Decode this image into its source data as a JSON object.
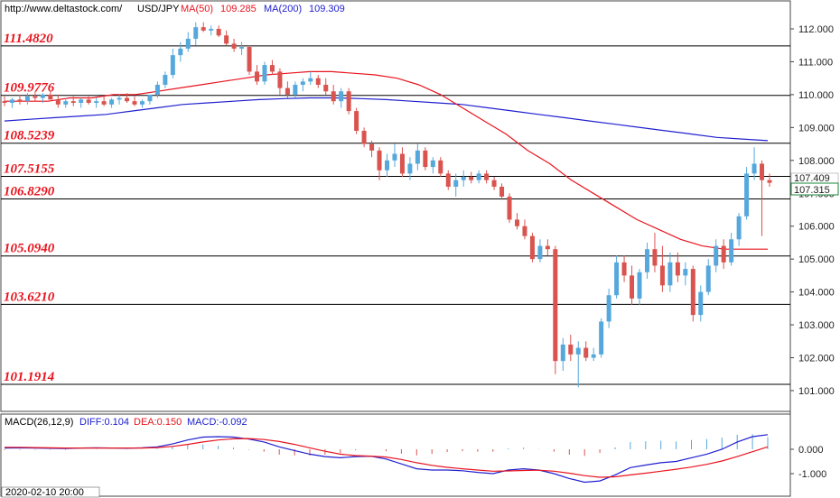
{
  "header": {
    "url": "http://www.deltastock.com/",
    "symbol": "USD/JPY",
    "ma50_label": "MA(50)",
    "ma50_value": "109.285",
    "ma200_label": "MA(200)",
    "ma200_value": "109.309"
  },
  "macd_header": {
    "label": "MACD(26,12,9)",
    "diff": "DIFF:0.104",
    "dea": "DEA:0.150",
    "macd": "MACD:-0.092"
  },
  "date_readout": "2020-02-10 20:00",
  "current_price": {
    "upper": "107.409",
    "lower": "107.315"
  },
  "colors": {
    "bull": "#56a8dc",
    "bear": "#d9534f",
    "ma50": "#e8141e",
    "ma200": "#2020d0",
    "level_text": "#e8141e"
  },
  "chart_data": [
    {
      "type": "candlestick",
      "symbol": "USD/JPY",
      "ylim": [
        100.7,
        112.45
      ],
      "y_ticks": [
        "112.000",
        "111.000",
        "110.000",
        "109.000",
        "108.000",
        "107.000",
        "106.000",
        "105.000",
        "104.000",
        "103.000",
        "102.000",
        "101.000"
      ],
      "levels": [
        "111.4820",
        "109.9776",
        "108.5239",
        "107.5155",
        "106.8290",
        "105.0940",
        "103.6210",
        "101.1914"
      ],
      "series": [
        {
          "name": "MA(50)",
          "values": [
            109.8,
            109.8,
            109.8,
            109.9,
            109.9,
            110.0,
            110.0,
            110.1,
            110.2,
            110.3,
            110.4,
            110.5,
            110.6,
            110.65,
            110.7,
            110.7,
            110.65,
            110.6,
            110.5,
            110.3,
            110.0,
            109.6,
            109.2,
            108.8,
            108.3,
            107.9,
            107.4,
            107.0,
            106.6,
            106.2,
            105.9,
            105.6,
            105.4,
            105.3,
            105.3,
            105.3
          ]
        },
        {
          "name": "MA(200)",
          "values": [
            109.2,
            109.25,
            109.3,
            109.35,
            109.4,
            109.5,
            109.6,
            109.7,
            109.75,
            109.8,
            109.85,
            109.88,
            109.9,
            109.9,
            109.88,
            109.85,
            109.8,
            109.75,
            109.7,
            109.6,
            109.5,
            109.4,
            109.3,
            109.2,
            109.1,
            109.0,
            108.9,
            108.8,
            108.7,
            108.65,
            108.6
          ]
        }
      ],
      "candles": [
        {
          "o": 109.8,
          "h": 109.95,
          "l": 109.65,
          "c": 109.75
        },
        {
          "o": 109.75,
          "h": 109.9,
          "l": 109.6,
          "c": 109.85
        },
        {
          "o": 109.85,
          "h": 110.0,
          "l": 109.7,
          "c": 109.8
        },
        {
          "o": 109.8,
          "h": 110.05,
          "l": 109.7,
          "c": 109.95
        },
        {
          "o": 109.95,
          "h": 110.1,
          "l": 109.8,
          "c": 109.9
        },
        {
          "o": 109.9,
          "h": 110.05,
          "l": 109.75,
          "c": 110.0
        },
        {
          "o": 110.0,
          "h": 110.1,
          "l": 109.85,
          "c": 109.85
        },
        {
          "o": 109.85,
          "h": 110.0,
          "l": 109.6,
          "c": 109.7
        },
        {
          "o": 109.7,
          "h": 109.9,
          "l": 109.6,
          "c": 109.8
        },
        {
          "o": 109.8,
          "h": 109.95,
          "l": 109.65,
          "c": 109.75
        },
        {
          "o": 109.75,
          "h": 109.9,
          "l": 109.6,
          "c": 109.85
        },
        {
          "o": 109.85,
          "h": 109.95,
          "l": 109.7,
          "c": 109.75
        },
        {
          "o": 109.75,
          "h": 109.9,
          "l": 109.6,
          "c": 109.8
        },
        {
          "o": 109.8,
          "h": 109.95,
          "l": 109.65,
          "c": 109.7
        },
        {
          "o": 109.7,
          "h": 109.9,
          "l": 109.6,
          "c": 109.85
        },
        {
          "o": 109.85,
          "h": 110.0,
          "l": 109.7,
          "c": 109.9
        },
        {
          "o": 109.9,
          "h": 110.05,
          "l": 109.75,
          "c": 109.8
        },
        {
          "o": 109.8,
          "h": 109.95,
          "l": 109.65,
          "c": 109.7
        },
        {
          "o": 109.7,
          "h": 109.85,
          "l": 109.6,
          "c": 109.8
        },
        {
          "o": 109.8,
          "h": 110.0,
          "l": 109.7,
          "c": 110.0
        },
        {
          "o": 110.0,
          "h": 110.4,
          "l": 109.9,
          "c": 110.3
        },
        {
          "o": 110.3,
          "h": 110.7,
          "l": 110.2,
          "c": 110.6
        },
        {
          "o": 110.6,
          "h": 111.4,
          "l": 110.5,
          "c": 111.2
        },
        {
          "o": 111.2,
          "h": 111.6,
          "l": 111.0,
          "c": 111.4
        },
        {
          "o": 111.4,
          "h": 111.9,
          "l": 111.3,
          "c": 111.7
        },
        {
          "o": 111.7,
          "h": 112.2,
          "l": 111.5,
          "c": 112.05
        },
        {
          "o": 112.05,
          "h": 112.2,
          "l": 111.9,
          "c": 111.95
        },
        {
          "o": 111.95,
          "h": 112.1,
          "l": 111.8,
          "c": 112.0
        },
        {
          "o": 112.0,
          "h": 112.1,
          "l": 111.75,
          "c": 111.8
        },
        {
          "o": 111.8,
          "h": 111.95,
          "l": 111.5,
          "c": 111.55
        },
        {
          "o": 111.55,
          "h": 111.7,
          "l": 111.3,
          "c": 111.4
        },
        {
          "o": 111.4,
          "h": 111.6,
          "l": 111.2,
          "c": 111.45
        },
        {
          "o": 111.45,
          "h": 111.5,
          "l": 110.6,
          "c": 110.7
        },
        {
          "o": 110.7,
          "h": 110.9,
          "l": 110.3,
          "c": 110.4
        },
        {
          "o": 110.4,
          "h": 111.0,
          "l": 110.3,
          "c": 110.9
        },
        {
          "o": 110.9,
          "h": 111.05,
          "l": 110.6,
          "c": 110.7
        },
        {
          "o": 110.7,
          "h": 110.8,
          "l": 110.0,
          "c": 110.2
        },
        {
          "o": 110.2,
          "h": 110.4,
          "l": 109.9,
          "c": 110.0
        },
        {
          "o": 110.0,
          "h": 110.4,
          "l": 109.9,
          "c": 110.3
        },
        {
          "o": 110.3,
          "h": 110.5,
          "l": 110.1,
          "c": 110.4
        },
        {
          "o": 110.4,
          "h": 110.7,
          "l": 110.3,
          "c": 110.5
        },
        {
          "o": 110.5,
          "h": 110.6,
          "l": 110.2,
          "c": 110.3
        },
        {
          "o": 110.3,
          "h": 110.5,
          "l": 110.0,
          "c": 110.1
        },
        {
          "o": 110.1,
          "h": 110.3,
          "l": 109.7,
          "c": 109.8
        },
        {
          "o": 109.8,
          "h": 110.2,
          "l": 109.6,
          "c": 110.1
        },
        {
          "o": 110.1,
          "h": 110.2,
          "l": 109.4,
          "c": 109.5
        },
        {
          "o": 109.5,
          "h": 109.6,
          "l": 108.8,
          "c": 108.9
        },
        {
          "o": 108.9,
          "h": 109.0,
          "l": 108.4,
          "c": 108.5
        },
        {
          "o": 108.5,
          "h": 108.6,
          "l": 108.1,
          "c": 108.3
        },
        {
          "o": 108.3,
          "h": 108.4,
          "l": 107.4,
          "c": 107.7
        },
        {
          "o": 107.7,
          "h": 108.2,
          "l": 107.5,
          "c": 108.0
        },
        {
          "o": 108.0,
          "h": 108.5,
          "l": 107.8,
          "c": 108.2
        },
        {
          "o": 108.2,
          "h": 108.4,
          "l": 107.5,
          "c": 107.6
        },
        {
          "o": 107.6,
          "h": 108.1,
          "l": 107.4,
          "c": 107.9
        },
        {
          "o": 107.9,
          "h": 108.5,
          "l": 107.7,
          "c": 108.3
        },
        {
          "o": 108.3,
          "h": 108.4,
          "l": 107.7,
          "c": 107.8
        },
        {
          "o": 107.8,
          "h": 108.1,
          "l": 107.6,
          "c": 108.0
        },
        {
          "o": 108.0,
          "h": 108.1,
          "l": 107.5,
          "c": 107.6
        },
        {
          "o": 107.6,
          "h": 107.7,
          "l": 107.1,
          "c": 107.2
        },
        {
          "o": 107.2,
          "h": 107.6,
          "l": 106.9,
          "c": 107.4
        },
        {
          "o": 107.4,
          "h": 107.7,
          "l": 107.2,
          "c": 107.5
        },
        {
          "o": 107.5,
          "h": 107.65,
          "l": 107.3,
          "c": 107.4
        },
        {
          "o": 107.4,
          "h": 107.7,
          "l": 107.3,
          "c": 107.6
        },
        {
          "o": 107.6,
          "h": 107.7,
          "l": 107.3,
          "c": 107.4
        },
        {
          "o": 107.4,
          "h": 107.5,
          "l": 107.1,
          "c": 107.2
        },
        {
          "o": 107.2,
          "h": 107.3,
          "l": 106.8,
          "c": 106.9
        },
        {
          "o": 106.9,
          "h": 107.0,
          "l": 106.1,
          "c": 106.2
        },
        {
          "o": 106.2,
          "h": 106.4,
          "l": 105.9,
          "c": 106.0
        },
        {
          "o": 106.0,
          "h": 106.2,
          "l": 105.6,
          "c": 105.7
        },
        {
          "o": 105.7,
          "h": 105.8,
          "l": 104.9,
          "c": 105.0
        },
        {
          "o": 105.0,
          "h": 105.6,
          "l": 104.9,
          "c": 105.4
        },
        {
          "o": 105.4,
          "h": 105.6,
          "l": 105.1,
          "c": 105.3
        },
        {
          "o": 105.3,
          "h": 105.4,
          "l": 101.5,
          "c": 101.9
        },
        {
          "o": 101.9,
          "h": 102.6,
          "l": 101.6,
          "c": 102.4
        },
        {
          "o": 102.4,
          "h": 102.7,
          "l": 101.9,
          "c": 102.1
        },
        {
          "o": 102.1,
          "h": 102.5,
          "l": 101.1,
          "c": 102.3
        },
        {
          "o": 102.3,
          "h": 102.5,
          "l": 101.9,
          "c": 102.0
        },
        {
          "o": 102.0,
          "h": 102.3,
          "l": 101.9,
          "c": 102.1
        },
        {
          "o": 102.1,
          "h": 103.2,
          "l": 102.0,
          "c": 103.1
        },
        {
          "o": 103.1,
          "h": 104.1,
          "l": 102.9,
          "c": 103.9
        },
        {
          "o": 103.9,
          "h": 105.1,
          "l": 103.8,
          "c": 104.9
        },
        {
          "o": 104.9,
          "h": 105.1,
          "l": 104.3,
          "c": 104.5
        },
        {
          "o": 104.5,
          "h": 104.8,
          "l": 103.6,
          "c": 103.8
        },
        {
          "o": 103.8,
          "h": 104.7,
          "l": 103.6,
          "c": 104.6
        },
        {
          "o": 104.6,
          "h": 105.5,
          "l": 104.4,
          "c": 105.3
        },
        {
          "o": 105.3,
          "h": 105.8,
          "l": 104.6,
          "c": 104.8
        },
        {
          "o": 104.8,
          "h": 105.4,
          "l": 104.0,
          "c": 104.2
        },
        {
          "o": 104.2,
          "h": 105.2,
          "l": 104.0,
          "c": 104.9
        },
        {
          "o": 104.9,
          "h": 105.2,
          "l": 104.3,
          "c": 104.5
        },
        {
          "o": 104.5,
          "h": 104.9,
          "l": 104.2,
          "c": 104.7
        },
        {
          "o": 104.7,
          "h": 104.8,
          "l": 103.1,
          "c": 103.3
        },
        {
          "o": 103.3,
          "h": 104.2,
          "l": 103.1,
          "c": 104.0
        },
        {
          "o": 104.0,
          "h": 105.0,
          "l": 103.9,
          "c": 104.8
        },
        {
          "o": 104.8,
          "h": 105.6,
          "l": 104.6,
          "c": 105.4
        },
        {
          "o": 105.4,
          "h": 105.6,
          "l": 104.7,
          "c": 104.9
        },
        {
          "o": 104.9,
          "h": 105.8,
          "l": 104.8,
          "c": 105.6
        },
        {
          "o": 105.6,
          "h": 106.4,
          "l": 105.4,
          "c": 106.3
        },
        {
          "o": 106.3,
          "h": 107.8,
          "l": 106.2,
          "c": 107.6
        },
        {
          "o": 107.6,
          "h": 108.4,
          "l": 107.4,
          "c": 107.9
        },
        {
          "o": 107.9,
          "h": 108.0,
          "l": 105.7,
          "c": 107.4
        },
        {
          "o": 107.4,
          "h": 107.6,
          "l": 107.2,
          "c": 107.32
        }
      ]
    },
    {
      "type": "macd",
      "title": "MACD(26,12,9)",
      "y_ticks": [
        "0.000",
        "-1.000"
      ],
      "ylim": [
        -1.5,
        1.2
      ],
      "series": [
        {
          "name": "DIFF",
          "values": [
            0.05,
            0.06,
            0.05,
            0.04,
            0.03,
            0.05,
            0.06,
            0.05,
            0.04,
            0.06,
            0.1,
            0.22,
            0.38,
            0.5,
            0.52,
            0.5,
            0.42,
            0.3,
            0.1,
            -0.05,
            -0.2,
            -0.3,
            -0.35,
            -0.3,
            -0.28,
            -0.4,
            -0.6,
            -0.8,
            -0.85,
            -0.85,
            -0.88,
            -0.95,
            -1.0,
            -0.85,
            -0.8,
            -0.85,
            -1.0,
            -1.2,
            -1.35,
            -1.3,
            -1.05,
            -0.75,
            -0.65,
            -0.55,
            -0.5,
            -0.35,
            -0.2,
            0.0,
            0.3,
            0.52,
            0.6
          ]
        },
        {
          "name": "DEA",
          "values": [
            0.08,
            0.08,
            0.07,
            0.06,
            0.05,
            0.05,
            0.05,
            0.05,
            0.05,
            0.05,
            0.07,
            0.12,
            0.2,
            0.3,
            0.38,
            0.43,
            0.44,
            0.4,
            0.32,
            0.2,
            0.06,
            -0.08,
            -0.2,
            -0.26,
            -0.28,
            -0.32,
            -0.42,
            -0.55,
            -0.66,
            -0.74,
            -0.8,
            -0.85,
            -0.9,
            -0.89,
            -0.87,
            -0.86,
            -0.9,
            -0.98,
            -1.08,
            -1.15,
            -1.13,
            -1.05,
            -0.98,
            -0.9,
            -0.82,
            -0.73,
            -0.62,
            -0.48,
            -0.3,
            -0.1,
            0.1
          ]
        },
        {
          "name": "MACD",
          "values": [
            -0.03,
            -0.02,
            -0.02,
            -0.02,
            -0.02,
            0.0,
            0.01,
            0.0,
            -0.01,
            0.01,
            0.03,
            0.1,
            0.18,
            0.2,
            0.14,
            0.07,
            -0.02,
            -0.1,
            -0.22,
            -0.25,
            -0.26,
            -0.22,
            -0.15,
            -0.04,
            0.0,
            -0.08,
            -0.18,
            -0.25,
            -0.19,
            -0.11,
            -0.08,
            -0.1,
            -0.1,
            0.04,
            0.07,
            0.01,
            -0.1,
            -0.22,
            -0.27,
            -0.15,
            0.08,
            0.3,
            0.33,
            0.35,
            0.32,
            0.38,
            0.42,
            0.48,
            0.6,
            0.62,
            0.5
          ]
        }
      ]
    }
  ]
}
